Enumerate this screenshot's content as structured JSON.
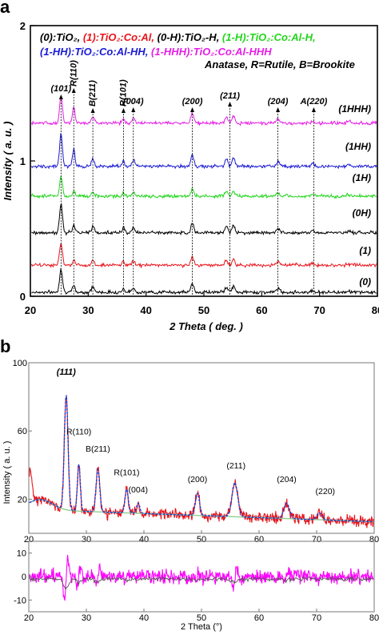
{
  "chart_data": [
    {
      "panel_label": "a",
      "type": "line",
      "xlabel": "2 Theta ( deg. )",
      "ylabel": "Intensity ( a. u. )",
      "xlim": [
        20,
        80
      ],
      "ylim": [
        0,
        2
      ],
      "xticks": [
        20,
        30,
        40,
        50,
        60,
        70,
        80
      ],
      "yticks": [
        0,
        1,
        2
      ],
      "legend_lines": [
        [
          {
            "text": "(0):TiO₂,",
            "color": "#000000"
          },
          {
            "text": " (1):TiO₂:Co:Al,",
            "color": "#e8141b"
          },
          {
            "text": " (0-H):TiO₂-H,",
            "color": "#000000"
          },
          {
            "text": " (1-H):TiO₂:Co:Al-H,",
            "color": "#22d61c"
          }
        ],
        [
          {
            "text": "(1-HH):TiO₂:Co:Al-HH,",
            "color": "#1b1bd6"
          },
          {
            "text": " (1-HHH):TiO₂:Co:Al-HHH",
            "color": "#e51fe5"
          }
        ]
      ],
      "legend_note": "Anatase, R=Rutile, B=Brookite",
      "peaks": [
        {
          "label": "(101)",
          "x": 25.3
        },
        {
          "label": "R(110)",
          "x": 27.5
        },
        {
          "label": "B(211)",
          "x": 30.8
        },
        {
          "label": "R(101)",
          "x": 36.1
        },
        {
          "label": "(004)",
          "x": 37.8
        },
        {
          "label": "(200)",
          "x": 48.0
        },
        {
          "label": "(211)",
          "x": 54.5
        },
        {
          "label": "(204)",
          "x": 62.8
        },
        {
          "label": "A(220)",
          "x": 69.0
        }
      ],
      "series": [
        {
          "name": "(0)",
          "color": "#000000",
          "baseline": 0.03
        },
        {
          "name": "(1)",
          "color": "#e8141b",
          "baseline": 0.23
        },
        {
          "name": "(0H)",
          "color": "#000000",
          "baseline": 0.47
        },
        {
          "name": "(1H)",
          "color": "#22d61c",
          "baseline": 0.74
        },
        {
          "name": "(1HH)",
          "color": "#1b1bd6",
          "baseline": 0.96
        },
        {
          "name": "(1HHH)",
          "color": "#e51fe5",
          "baseline": 1.28
        }
      ]
    },
    {
      "panel_label": "b",
      "type": "line",
      "xlabel": "2 Theta (°)",
      "ylabel": "Intensity ( a. u. )",
      "xlim": [
        20,
        80
      ],
      "ylim": [
        0,
        100
      ],
      "xticks": [
        20,
        30,
        40,
        50,
        60,
        70,
        80
      ],
      "yticks": [
        20,
        60,
        100
      ],
      "peaks": [
        {
          "label": "(111)",
          "x": 26.5,
          "y": 93
        },
        {
          "label": "R(110)",
          "x": 28.7,
          "y": 58
        },
        {
          "label": "B(211)",
          "x": 32.0,
          "y": 48
        },
        {
          "label": "R(101)",
          "x": 37.0,
          "y": 34
        },
        {
          "label": "(004)",
          "x": 39.0,
          "y": 24
        },
        {
          "label": "(200)",
          "x": 49.3,
          "y": 30
        },
        {
          "label": "(211)",
          "x": 56.0,
          "y": 38
        },
        {
          "label": "(204)",
          "x": 64.8,
          "y": 30
        },
        {
          "label": "(220)",
          "x": 71.5,
          "y": 23
        }
      ],
      "series": [
        {
          "role": "observed",
          "color": "#e8141b"
        },
        {
          "role": "calculated",
          "color": "#1b3fd6"
        },
        {
          "role": "background",
          "color": "#8fcf8f"
        }
      ],
      "residual": {
        "ylim": [
          -15,
          15
        ],
        "yticks": [
          10,
          0,
          -10
        ],
        "xticks": [
          20,
          30,
          40,
          50,
          60,
          70,
          80
        ],
        "series": [
          {
            "role": "difference",
            "color": "#ff00ff"
          },
          {
            "role": "difference-2",
            "color": "#555555"
          }
        ]
      }
    }
  ]
}
